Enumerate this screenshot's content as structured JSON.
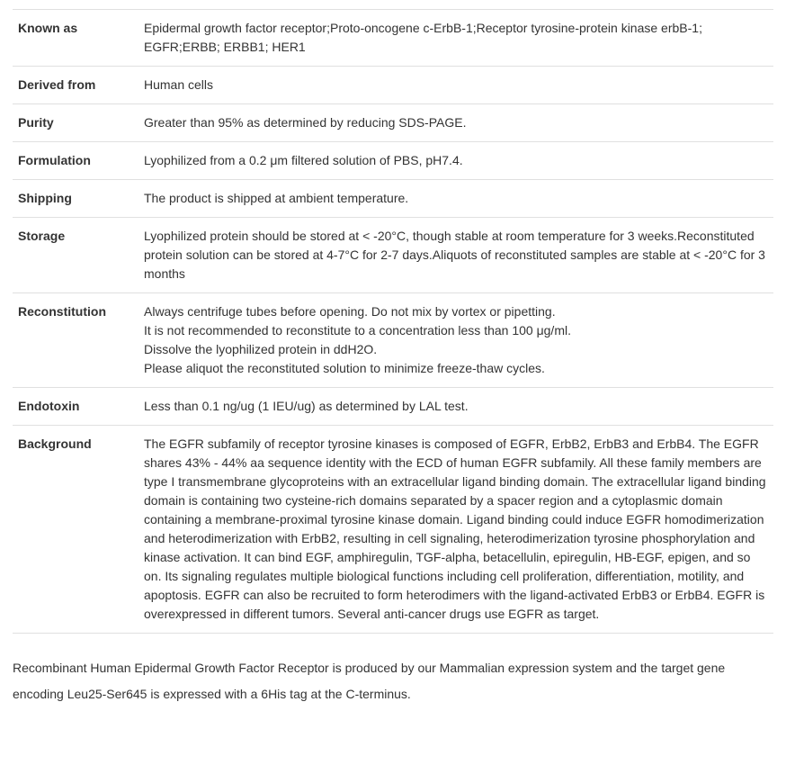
{
  "table": {
    "rows": [
      {
        "label": "Known as",
        "value": "Epidermal growth factor receptor;Proto-oncogene c-ErbB-1;Receptor tyrosine-protein kinase erbB-1; EGFR;ERBB; ERBB1; HER1"
      },
      {
        "label": "Derived from",
        "value": "Human cells"
      },
      {
        "label": "Purity",
        "value": "Greater than 95% as determined by reducing SDS-PAGE."
      },
      {
        "label": "Formulation",
        "value": "Lyophilized from a 0.2 μm filtered solution of PBS, pH7.4."
      },
      {
        "label": "Shipping",
        "value": "The product is shipped at ambient temperature."
      },
      {
        "label": "Storage",
        "value": "Lyophilized protein should be stored at < -20°C, though stable at room temperature for 3 weeks.Reconstituted protein solution can be stored at 4-7°C for 2-7 days.Aliquots of reconstituted samples are stable at < -20°C for 3 months"
      },
      {
        "label": "Reconstitution",
        "lines": [
          "Always centrifuge tubes before opening. Do not mix by vortex or pipetting.",
          "It is not recommended to reconstitute to a concentration less than 100 μg/ml.",
          "Dissolve the lyophilized protein in ddH2O.",
          "Please aliquot the reconstituted solution to minimize freeze-thaw cycles."
        ]
      },
      {
        "label": "Endotoxin",
        "value": "Less than 0.1 ng/ug (1 IEU/ug) as determined by LAL test."
      },
      {
        "label": "Background",
        "value": "The EGFR subfamily of receptor tyrosine kinases is composed of EGFR, ErbB2, ErbB3 and ErbB4. The EGFR shares 43% - 44% aa sequence identity with the ECD of human EGFR subfamily. All these family members are type I transmembrane glycoproteins with an extracellular ligand binding domain. The extracellular ligand binding domain is containing two cysteine-rich domains separated by a spacer region and a cytoplasmic domain containing a membrane-proximal tyrosine kinase domain. Ligand binding could induce EGFR homodimerization and heterodimerization with ErbB2, resulting in cell signaling, heterodimerization tyrosine phosphorylation and kinase activation. It can bind EGF, amphiregulin, TGF-alpha, betacellulin, epiregulin, HB-EGF, epigen, and so on. Its signaling regulates multiple biological functions including cell proliferation, differentiation, motility, and apoptosis. EGFR can also be recruited to form heterodimers with the ligand-activated ErbB3 or ErbB4. EGFR is overexpressed in different tumors. Several anti-cancer drugs use EGFR as target."
      }
    ]
  },
  "footer_description": "Recombinant Human Epidermal Growth Factor Receptor is produced by our Mammalian expression system and the target gene encoding Leu25-Ser645 is expressed with a 6His tag at the C-terminus."
}
